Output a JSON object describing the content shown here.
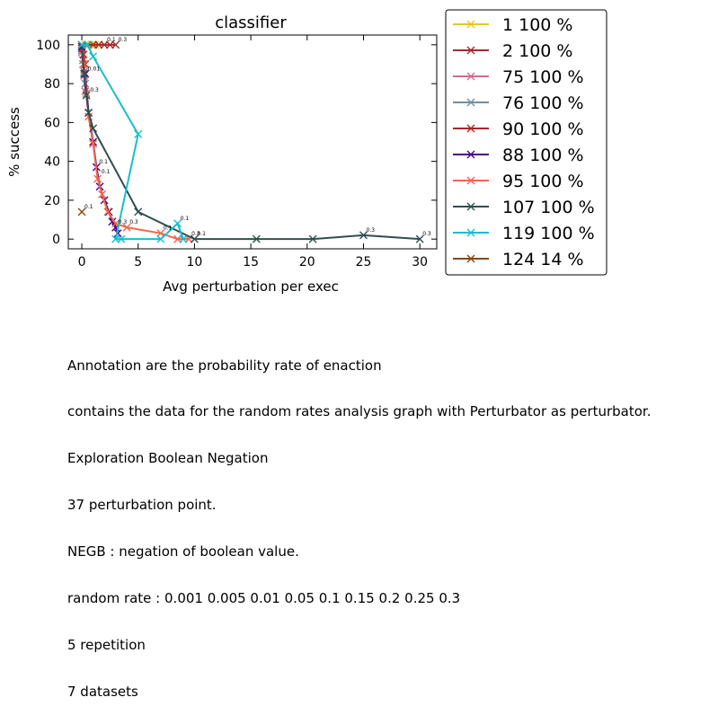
{
  "chart_data": {
    "type": "line",
    "title": "classifier",
    "xlabel": "Avg perturbation per exec",
    "ylabel": "% success",
    "xlim": [
      -1.2,
      31.5
    ],
    "ylim": [
      -5,
      105
    ],
    "xticks": [
      "0",
      "5",
      "10",
      "15",
      "20",
      "25",
      "30"
    ],
    "yticks": [
      "0",
      "20",
      "40",
      "60",
      "80",
      "100"
    ],
    "legend_placement": "outside-right",
    "series": [
      {
        "name": "1 100 %",
        "color": "#e8c61a",
        "points": [
          [
            0.0,
            100
          ],
          [
            0.3,
            100
          ],
          [
            0.6,
            100
          ],
          [
            0.9,
            100
          ],
          [
            1.2,
            100
          ]
        ]
      },
      {
        "name": "2 100 %",
        "color": "#a52a2a",
        "points": [
          [
            0.0,
            100
          ],
          [
            0.5,
            100
          ],
          [
            1.0,
            100
          ],
          [
            1.5,
            100
          ],
          [
            2.0,
            100
          ],
          [
            2.5,
            100
          ],
          [
            3.0,
            100
          ]
        ],
        "labels": [
          [
            2.0,
            100,
            "0.1"
          ],
          [
            3.0,
            100,
            "0.3"
          ]
        ]
      },
      {
        "name": "75 100 %",
        "color": "#d36b8e",
        "points": [
          [
            0.0,
            96
          ],
          [
            0.1,
            90
          ],
          [
            0.2,
            84
          ],
          [
            0.3,
            76
          ]
        ]
      },
      {
        "name": "76 100 %",
        "color": "#6f8fa0",
        "points": [
          [
            0.0,
            97
          ],
          [
            0.1,
            92
          ],
          [
            0.2,
            86
          ],
          [
            0.3,
            80
          ]
        ]
      },
      {
        "name": "90 100 %",
        "color": "#b22222",
        "points": [
          [
            0.0,
            98
          ],
          [
            0.15,
            95
          ],
          [
            0.3,
            90
          ]
        ]
      },
      {
        "name": "88 100 %",
        "color": "#4b0082",
        "points": [
          [
            0.0,
            99
          ],
          [
            0.3,
            85
          ],
          [
            0.6,
            65
          ],
          [
            1.0,
            50
          ],
          [
            1.3,
            37
          ],
          [
            1.6,
            27
          ],
          [
            2.0,
            20
          ],
          [
            2.4,
            14
          ],
          [
            2.7,
            9
          ],
          [
            3.0,
            6
          ],
          [
            3.2,
            3
          ]
        ],
        "labels": [
          [
            0.3,
            85,
            "0.01"
          ],
          [
            1.3,
            37,
            "0.1"
          ],
          [
            3.0,
            6,
            "0.3"
          ]
        ]
      },
      {
        "name": "95 100 %",
        "color": "#f0664c",
        "points": [
          [
            0.0,
            100
          ],
          [
            0.2,
            90
          ],
          [
            0.4,
            75
          ],
          [
            0.6,
            63
          ],
          [
            1.0,
            49
          ],
          [
            1.4,
            31
          ],
          [
            1.8,
            23
          ],
          [
            2.3,
            14
          ],
          [
            3.0,
            8
          ],
          [
            4.0,
            6
          ],
          [
            7.0,
            3
          ],
          [
            8.5,
            0
          ],
          [
            9.5,
            0
          ]
        ],
        "labels": [
          [
            1.5,
            32,
            "0.1"
          ],
          [
            4.0,
            6,
            "0.3"
          ],
          [
            7.0,
            3,
            "0.1"
          ],
          [
            9.5,
            0,
            "0.3"
          ]
        ]
      },
      {
        "name": "107 100 %",
        "color": "#2f4f4f",
        "points": [
          [
            0.0,
            100
          ],
          [
            0.2,
            85
          ],
          [
            0.4,
            74
          ],
          [
            0.6,
            65
          ],
          [
            1.0,
            57
          ],
          [
            5.0,
            14
          ],
          [
            10.0,
            0
          ],
          [
            15.5,
            0
          ],
          [
            20.5,
            0
          ],
          [
            25.0,
            2
          ],
          [
            30.0,
            0
          ]
        ],
        "labels": [
          [
            0.5,
            74,
            "0.3"
          ],
          [
            10.0,
            0,
            "0.1"
          ],
          [
            25.0,
            2,
            "0.3"
          ],
          [
            30.0,
            0,
            "0.3"
          ]
        ]
      },
      {
        "name": "119 100 %",
        "color": "#17becf",
        "points": [
          [
            0.0,
            100
          ],
          [
            0.5,
            100
          ],
          [
            1.0,
            94
          ],
          [
            5.0,
            54
          ],
          [
            3.0,
            0
          ],
          [
            3.5,
            0
          ],
          [
            7.0,
            0
          ],
          [
            8.5,
            8
          ],
          [
            9.0,
            0
          ]
        ],
        "labels": [
          [
            8.5,
            8,
            "0.1"
          ]
        ]
      },
      {
        "name": "124 14 %",
        "color": "#8b4513",
        "points": [
          [
            0.0,
            14
          ]
        ],
        "labels": [
          [
            0.0,
            14,
            "0.1"
          ]
        ]
      }
    ]
  },
  "notes": [
    "Annotation are the probability rate of enaction",
    "contains the data for the random rates analysis graph with Perturbator as perturbator.",
    "Exploration Boolean Negation",
    "37 perturbation point.",
    "NEGB : negation of boolean value.",
    "random rate : 0.001 0.005 0.01 0.05 0.1 0.15 0.2 0.25 0.3",
    "5 repetition",
    "7 datasets"
  ]
}
